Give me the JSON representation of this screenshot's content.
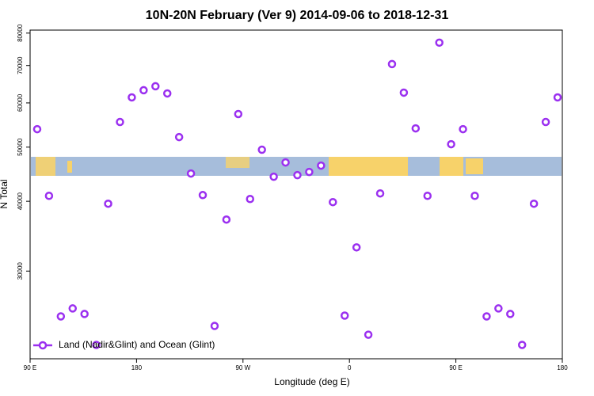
{
  "chart_data": {
    "type": "scatter",
    "title": "10N-20N February (Ver 9)   2014-09-06 to 2018-12-31",
    "x_label": "Longitude (deg E)",
    "y_label": "N Total",
    "log_y": true,
    "legend_position": "bottom-left",
    "xlim": [
      90,
      540
    ],
    "xticks": [
      {
        "value": 90,
        "label": "90 E"
      },
      180,
      {
        "value": 270,
        "label": "90 W"
      },
      {
        "value": 360,
        "label": "0"
      },
      {
        "value": 450,
        "label": "90 E"
      },
      {
        "value": 540,
        "label": "180"
      }
    ],
    "ylim": [
      20900,
      81000
    ],
    "yticks": [
      30000,
      40000,
      50000,
      60000,
      70000,
      80000
    ],
    "series": [
      {
        "name": "Land (Nadir&Glint) and Ocean (Glint)",
        "color": "#9b30f0",
        "x": [
          96,
          106,
          116,
          126,
          136,
          146,
          156,
          166,
          176,
          186,
          196,
          206,
          216,
          226,
          236,
          246,
          256,
          266,
          276,
          286,
          296,
          306,
          316,
          326,
          336,
          346,
          356,
          366,
          376,
          386,
          396,
          406,
          416,
          426,
          436,
          446,
          456,
          466,
          476,
          486,
          496,
          506,
          516,
          526,
          536
        ],
        "values": [
          53850,
          40910,
          24890,
          25720,
          25140,
          22130,
          39600,
          55460,
          61380,
          63220,
          64260,
          62390,
          52120,
          44850,
          41040,
          23930,
          37100,
          57310,
          40380,
          49470,
          44260,
          46950,
          44550,
          45140,
          46340,
          39860,
          24970,
          33080,
          23080,
          41320,
          70420,
          62600,
          54020,
          40910,
          76920,
          50610,
          53850,
          40910,
          24890,
          25720,
          25140,
          22130,
          39600,
          55460,
          61380
        ]
      }
    ]
  }
}
